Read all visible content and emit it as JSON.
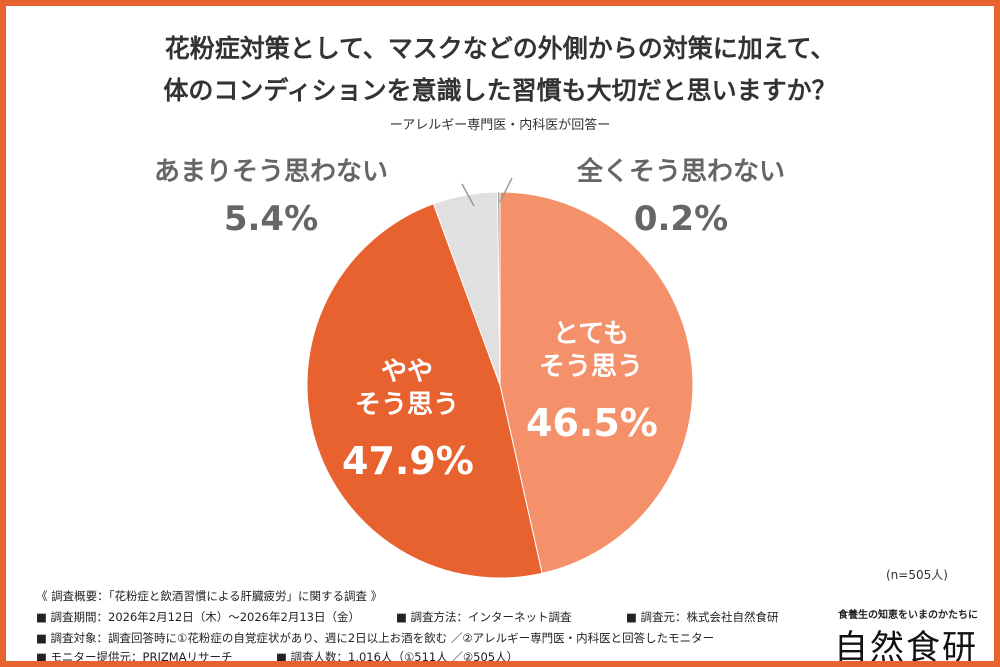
{
  "chart_data": {
    "type": "pie",
    "title": "花粉症対策として、マスクなどの外側からの対策に加えて、\n体のコンディションを意識した習慣も大切だと思いますか？",
    "subtitle": "ーアレルギー専門医・内科医が回答ー",
    "categories": [
      "とても\nそう思う",
      "やや\nそう思う",
      "あまりそう思わない",
      "全くそう思わない"
    ],
    "values": [
      46.5,
      47.9,
      5.4,
      0.2
    ],
    "value_labels": [
      "46.5%",
      "47.9%",
      "5.4%",
      "0.2%"
    ],
    "colors": [
      "#f4906a",
      "#e8622f",
      "#e0e0e0",
      "#9a9a9a"
    ],
    "sample_note": "(n=505人)"
  },
  "notes": [
    "《 調査概要：「花粉症と飲酒習慣による肝臓疲労」に関する調査 》",
    "■ 調査期間：2026年2月12日（木）～2026年2月13日（金）",
    "■ 調査方法：インターネット調査",
    "■ 調査元：株式会社自然食研",
    "■ 調査対象：調査回答時に①花粉症の自覚症状があり、週に2日以上お酒を飲む ／②アレルギー専門医・内科医と回答したモニター",
    "■ モニター提供元：PRIZMAリサーチ",
    "■ 調査人数：1,016人（①511人 ／②505人）"
  ],
  "logo": {
    "tagline": "食養生の知恵をいまのかたちに",
    "name": "自然食研"
  }
}
